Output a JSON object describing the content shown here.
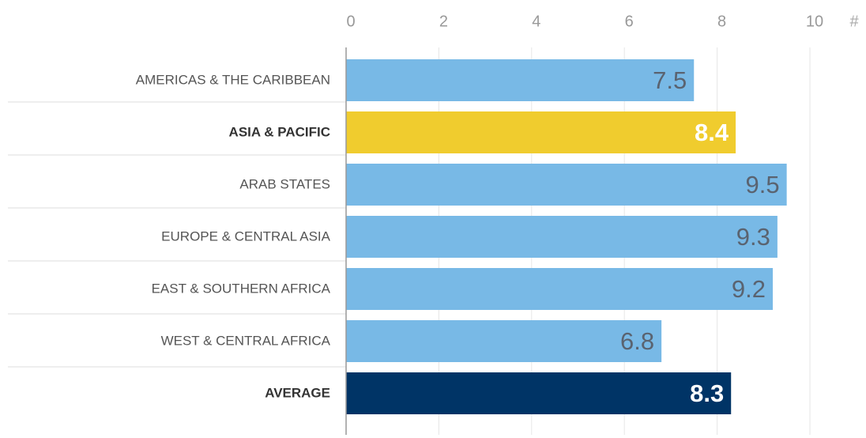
{
  "chart_data": {
    "type": "bar",
    "orientation": "horizontal",
    "categories": [
      "AMERICAS & THE CARIBBEAN",
      "ASIA & PACIFIC",
      "ARAB STATES",
      "EUROPE & CENTRAL ASIA",
      "EAST & SOUTHERN AFRICA",
      "WEST & CENTRAL AFRICA",
      "AVERAGE"
    ],
    "values": [
      7.5,
      8.4,
      9.5,
      9.3,
      9.2,
      6.8,
      8.3
    ],
    "colors": [
      "#78b9e6",
      "#f0cc2e",
      "#78b9e6",
      "#78b9e6",
      "#78b9e6",
      "#78b9e6",
      "#003466"
    ],
    "bold": [
      false,
      true,
      false,
      false,
      false,
      false,
      true
    ],
    "x_label": "#",
    "xlim": [
      0,
      10
    ],
    "xticks": [
      0,
      2,
      4,
      6,
      8,
      10
    ],
    "grid": true
  }
}
